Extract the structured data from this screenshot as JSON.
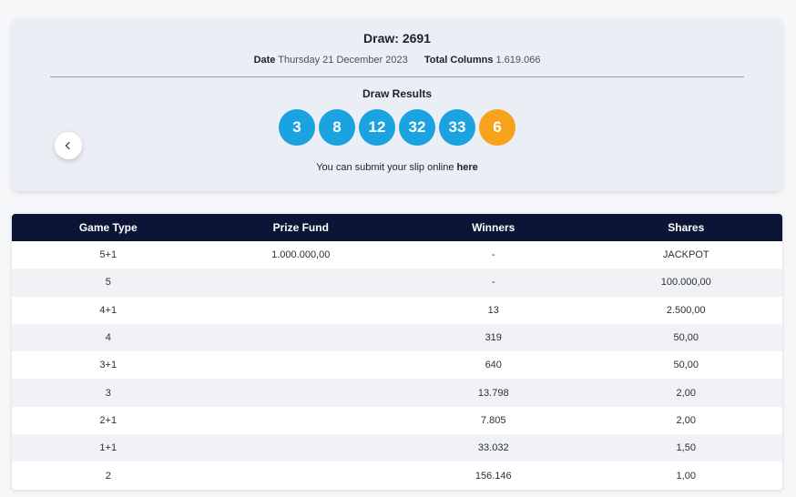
{
  "draw": {
    "title": "Draw: 2691",
    "date_label": "Date",
    "date_value": "Thursday 21 December 2023",
    "columns_label": "Total Columns",
    "columns_value": "1.619.066"
  },
  "results": {
    "title": "Draw Results",
    "balls": [
      {
        "value": "3",
        "color": "#1aa3e0"
      },
      {
        "value": "8",
        "color": "#1aa3e0"
      },
      {
        "value": "12",
        "color": "#1aa3e0"
      },
      {
        "value": "32",
        "color": "#1aa3e0"
      },
      {
        "value": "33",
        "color": "#1aa3e0"
      },
      {
        "value": "6",
        "color": "#f7a21b"
      }
    ],
    "submit_text": "You can submit your slip online",
    "submit_link": "here"
  },
  "nav": {
    "prev_icon": "chevron-left-icon"
  },
  "table": {
    "headers": [
      "Game Type",
      "Prize Fund",
      "Winners",
      "Shares"
    ],
    "rows": [
      [
        "5+1",
        "1.000.000,00",
        "-",
        "JACKPOT"
      ],
      [
        "5",
        "",
        "-",
        "100.000,00"
      ],
      [
        "4+1",
        "",
        "13",
        "2.500,00"
      ],
      [
        "4",
        "",
        "319",
        "50,00"
      ],
      [
        "3+1",
        "",
        "640",
        "50,00"
      ],
      [
        "3",
        "",
        "13.798",
        "2,00"
      ],
      [
        "2+1",
        "",
        "7.805",
        "2,00"
      ],
      [
        "1+1",
        "",
        "33.032",
        "1,50"
      ],
      [
        "2",
        "",
        "156.146",
        "1,00"
      ]
    ]
  },
  "colors": {
    "header_bg": "#0b1536",
    "ball_blue": "#1aa3e0",
    "ball_orange": "#f7a21b"
  }
}
